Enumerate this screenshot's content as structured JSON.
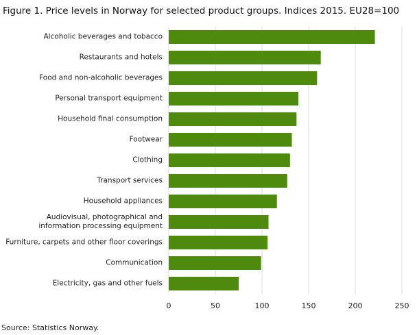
{
  "chart_data": {
    "type": "hbar",
    "title": "Figure 1. Price levels in Norway for selected product groups. Indices 2015. EU28=100",
    "source": "Source: Statistics Norway.",
    "categories": [
      "Alcoholic beverages and tobacco",
      "Restaurants and hotels",
      "Food and non-alcoholic beverages",
      "Personal transport equipment",
      "Household final consumption",
      "Footwear",
      "Clothing",
      "Transport services",
      "Household appliances",
      "Audiovisual, photographical and information processing equipment",
      "Furniture, carpets and other floor coverings",
      "Communication",
      "Electricity, gas and other fuels"
    ],
    "values": [
      221,
      163,
      159,
      139,
      137,
      132,
      130,
      127,
      116,
      107,
      106,
      99,
      75
    ],
    "color": "#4e8a0e",
    "xlim": [
      0,
      250
    ],
    "xticks": [
      0,
      50,
      100,
      150,
      200,
      250
    ],
    "grid": true
  }
}
